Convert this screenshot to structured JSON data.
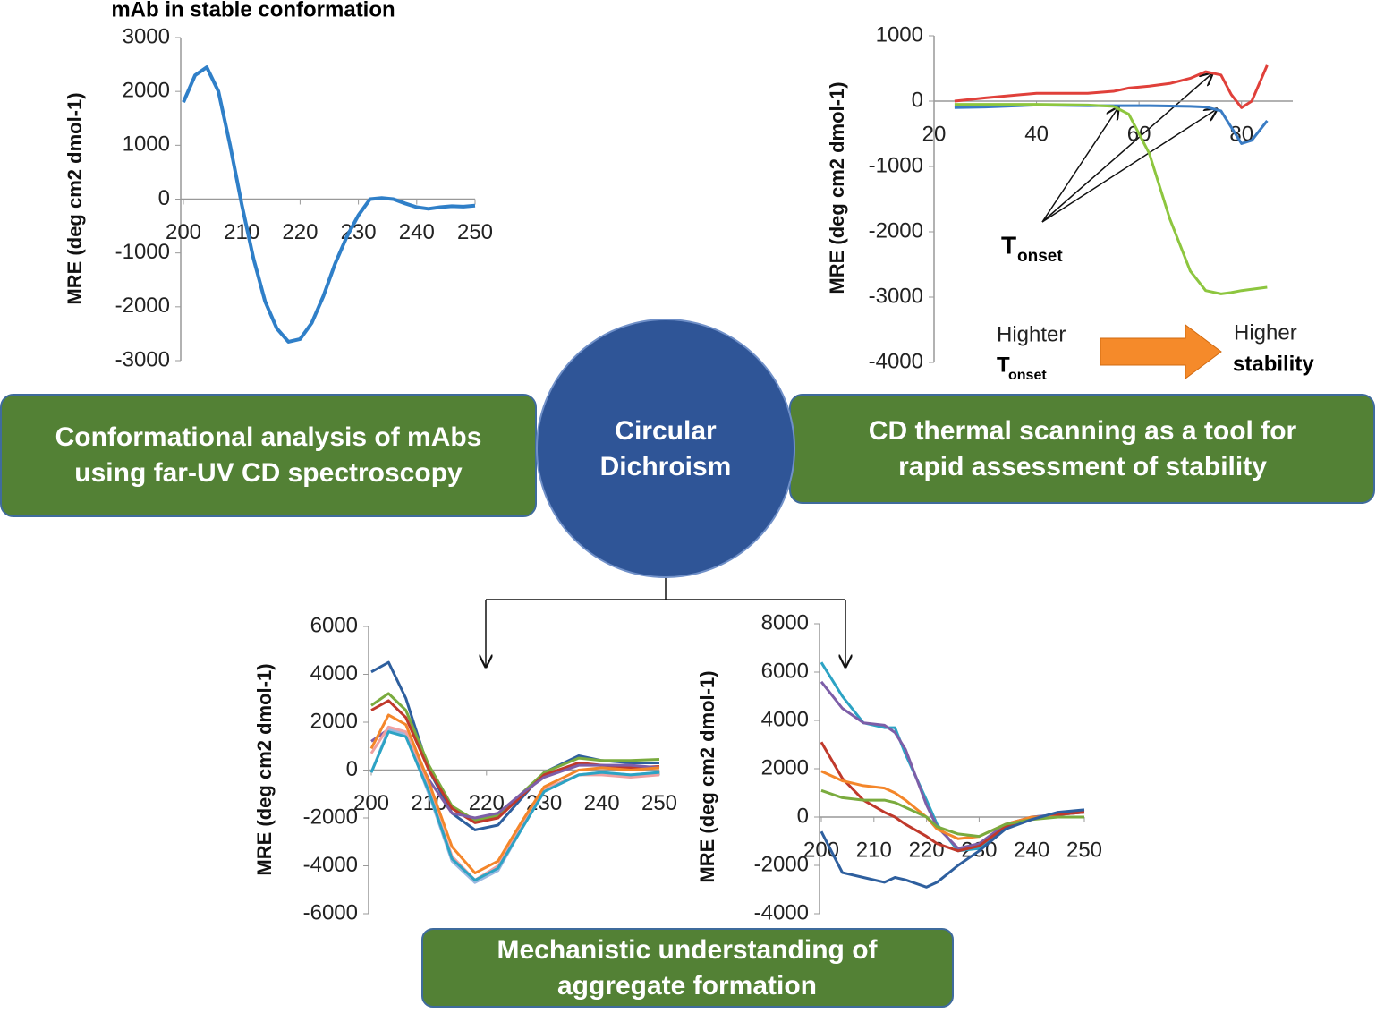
{
  "center": [
    "Circular",
    "Dichroism"
  ],
  "boxes": {
    "left": [
      "Conformational analysis of mAbs",
      "using far-UV CD spectroscopy"
    ],
    "right": [
      "CD thermal scanning as a tool for",
      "rapid assessment of stability"
    ],
    "bottom": [
      "Mechanistic understanding of",
      "aggregate formation"
    ]
  },
  "thermal_notes": {
    "tonset": {
      "main": "T",
      "sub": "onset"
    },
    "higher_tonset": {
      "line": "Highter",
      "main": "T",
      "sub": "onset"
    },
    "higher_stability": [
      "Higher",
      "stability"
    ]
  },
  "chart_data": [
    {
      "type": "line",
      "title": "mAb in stable conformation",
      "y_label": "MRE (deg cm2 dmol-1)",
      "x": [
        200,
        202,
        204,
        206,
        208,
        210,
        212,
        214,
        216,
        218,
        220,
        222,
        224,
        226,
        228,
        230,
        232,
        234,
        236,
        238,
        240,
        242,
        244,
        246,
        248,
        250
      ],
      "series": [
        {
          "color": "#2f7fc8",
          "values": [
            1800,
            2300,
            2450,
            2000,
            1000,
            -100,
            -1100,
            -1900,
            -2400,
            -2650,
            -2600,
            -2300,
            -1800,
            -1200,
            -700,
            -300,
            0,
            20,
            0,
            -80,
            -150,
            -180,
            -150,
            -130,
            -140,
            -120
          ]
        }
      ],
      "xlim": [
        200,
        250
      ],
      "xticks": [
        200,
        210,
        220,
        230,
        240,
        250
      ],
      "ylim": [
        -3000,
        3000
      ],
      "yticks": [
        -3000,
        -2000,
        -1000,
        0,
        1000,
        2000,
        3000
      ]
    },
    {
      "type": "line",
      "y_label": "MRE (deg cm2 dmol-1)",
      "x": [
        24,
        30,
        40,
        50,
        55,
        58,
        62,
        66,
        70,
        73,
        76,
        78,
        80,
        82,
        85
      ],
      "series": [
        {
          "color": "#e0403a",
          "values": [
            0,
            50,
            120,
            120,
            150,
            200,
            230,
            270,
            350,
            450,
            400,
            100,
            -100,
            0,
            550
          ]
        },
        {
          "color": "#3a7cc4",
          "values": [
            -100,
            -90,
            -60,
            -70,
            -70,
            -70,
            -70,
            -75,
            -80,
            -90,
            -150,
            -400,
            -650,
            -600,
            -300
          ]
        },
        {
          "color": "#8dc63f",
          "values": [
            -50,
            -50,
            -50,
            -60,
            -80,
            -200,
            -800,
            -1800,
            -2600,
            -2900,
            -2950,
            -2930,
            -2900,
            -2880,
            -2850
          ]
        }
      ],
      "xlim": [
        20,
        90
      ],
      "xticks": [
        20,
        40,
        60,
        80
      ],
      "ylim": [
        -4000,
        1000
      ],
      "yticks": [
        -4000,
        -3000,
        -2000,
        -1000,
        0,
        1000
      ]
    },
    {
      "type": "line",
      "y_label": "MRE (deg cm2 dmol-1)",
      "x": [
        200,
        203,
        206,
        210,
        214,
        218,
        222,
        226,
        230,
        236,
        240,
        245,
        250
      ],
      "series": [
        {
          "color": "#2e5f9e",
          "values": [
            4100,
            4500,
            3000,
            0,
            -1800,
            -2500,
            -2300,
            -1200,
            -100,
            600,
            400,
            300,
            300
          ]
        },
        {
          "color": "#7aab3e",
          "values": [
            2700,
            3200,
            2500,
            200,
            -1500,
            -2100,
            -1900,
            -1000,
            -100,
            500,
            400,
            400,
            450
          ]
        },
        {
          "color": "#c0392b",
          "values": [
            2500,
            2900,
            2200,
            0,
            -1600,
            -2200,
            -2000,
            -1100,
            -200,
            300,
            200,
            100,
            150
          ]
        },
        {
          "color": "#7d5ea8",
          "values": [
            1200,
            1700,
            1400,
            -400,
            -1800,
            -2000,
            -1800,
            -1000,
            -300,
            200,
            200,
            200,
            100
          ]
        },
        {
          "color": "#9ab8e0",
          "values": [
            -100,
            1700,
            1500,
            -1000,
            -3800,
            -4700,
            -4200,
            -2500,
            -900,
            -200,
            -100,
            -200,
            -100
          ]
        },
        {
          "color": "#f0a0a0",
          "values": [
            700,
            1800,
            1600,
            -800,
            -3600,
            -4600,
            -4000,
            -2400,
            -800,
            -200,
            -200,
            -300,
            -200
          ]
        },
        {
          "color": "#f4862a",
          "values": [
            900,
            2300,
            1900,
            -500,
            -3200,
            -4300,
            -3800,
            -2200,
            -700,
            0,
            100,
            0,
            100
          ]
        },
        {
          "color": "#2ca3c4",
          "values": [
            -100,
            1600,
            1400,
            -900,
            -3700,
            -4600,
            -4100,
            -2500,
            -900,
            -200,
            -100,
            -200,
            -100
          ]
        }
      ],
      "xlim": [
        200,
        250
      ],
      "xticks": [
        200,
        210,
        220,
        230,
        240,
        250
      ],
      "ylim": [
        -6000,
        6000
      ],
      "yticks": [
        -6000,
        -4000,
        -2000,
        0,
        2000,
        4000,
        6000
      ]
    },
    {
      "type": "line",
      "y_label": "MRE (deg cm2 dmol-1)",
      "x": [
        200,
        204,
        208,
        212,
        214,
        216,
        220,
        222,
        226,
        230,
        235,
        240,
        245,
        250
      ],
      "series": [
        {
          "color": "#2ca3c4",
          "values": [
            6400,
            5000,
            3900,
            3700,
            3700,
            2600,
            700,
            -300,
            -1400,
            -1300,
            -500,
            0,
            100,
            200
          ]
        },
        {
          "color": "#7d5ea8",
          "values": [
            5600,
            4500,
            3900,
            3800,
            3500,
            2800,
            500,
            -400,
            -1300,
            -1100,
            -300,
            0,
            100,
            200
          ]
        },
        {
          "color": "#c0392b",
          "values": [
            3100,
            1600,
            700,
            200,
            0,
            -300,
            -800,
            -1100,
            -1400,
            -1200,
            -400,
            -100,
            100,
            200
          ]
        },
        {
          "color": "#f4862a",
          "values": [
            1900,
            1500,
            1300,
            1200,
            1000,
            700,
            0,
            -500,
            -900,
            -800,
            -300,
            0,
            0,
            0
          ]
        },
        {
          "color": "#7aab3e",
          "values": [
            1100,
            800,
            700,
            700,
            600,
            400,
            0,
            -400,
            -700,
            -800,
            -300,
            -100,
            0,
            0
          ]
        },
        {
          "color": "#2e5f9e",
          "values": [
            -600,
            -2300,
            -2500,
            -2700,
            -2500,
            -2600,
            -2900,
            -2700,
            -2000,
            -1400,
            -500,
            -100,
            200,
            300
          ]
        }
      ],
      "xlim": [
        200,
        250
      ],
      "xticks": [
        200,
        210,
        220,
        230,
        240,
        250
      ],
      "ylim": [
        -4000,
        8000
      ],
      "yticks": [
        -4000,
        -2000,
        0,
        2000,
        4000,
        6000,
        8000
      ]
    }
  ]
}
